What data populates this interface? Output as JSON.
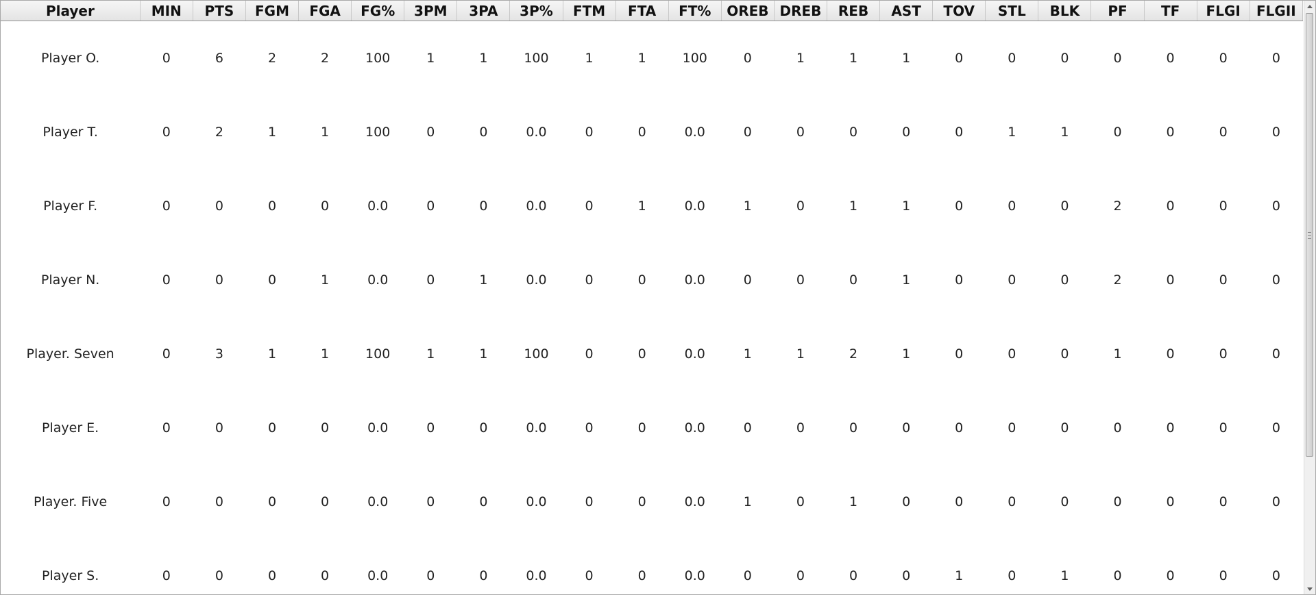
{
  "table": {
    "columns": [
      "Player",
      "MIN",
      "PTS",
      "FGM",
      "FGA",
      "FG%",
      "3PM",
      "3PA",
      "3P%",
      "FTM",
      "FTA",
      "FT%",
      "OREB",
      "DREB",
      "REB",
      "AST",
      "TOV",
      "STL",
      "BLK",
      "PF",
      "TF",
      "FLGI",
      "FLGII"
    ],
    "rows": [
      [
        "Player O.",
        "0",
        "6",
        "2",
        "2",
        "100",
        "1",
        "1",
        "100",
        "1",
        "1",
        "100",
        "0",
        "1",
        "1",
        "1",
        "0",
        "0",
        "0",
        "0",
        "0",
        "0",
        "0"
      ],
      [
        "Player T.",
        "0",
        "2",
        "1",
        "1",
        "100",
        "0",
        "0",
        "0.0",
        "0",
        "0",
        "0.0",
        "0",
        "0",
        "0",
        "0",
        "0",
        "1",
        "1",
        "0",
        "0",
        "0",
        "0"
      ],
      [
        "Player F.",
        "0",
        "0",
        "0",
        "0",
        "0.0",
        "0",
        "0",
        "0.0",
        "0",
        "1",
        "0.0",
        "1",
        "0",
        "1",
        "1",
        "0",
        "0",
        "0",
        "2",
        "0",
        "0",
        "0"
      ],
      [
        "Player N.",
        "0",
        "0",
        "0",
        "1",
        "0.0",
        "0",
        "1",
        "0.0",
        "0",
        "0",
        "0.0",
        "0",
        "0",
        "0",
        "1",
        "0",
        "0",
        "0",
        "2",
        "0",
        "0",
        "0"
      ],
      [
        "Player. Seven",
        "0",
        "3",
        "1",
        "1",
        "100",
        "1",
        "1",
        "100",
        "0",
        "0",
        "0.0",
        "1",
        "1",
        "2",
        "1",
        "0",
        "0",
        "0",
        "1",
        "0",
        "0",
        "0"
      ],
      [
        "Player E.",
        "0",
        "0",
        "0",
        "0",
        "0.0",
        "0",
        "0",
        "0.0",
        "0",
        "0",
        "0.0",
        "0",
        "0",
        "0",
        "0",
        "0",
        "0",
        "0",
        "0",
        "0",
        "0",
        "0"
      ],
      [
        "Player. Five",
        "0",
        "0",
        "0",
        "0",
        "0.0",
        "0",
        "0",
        "0.0",
        "0",
        "0",
        "0.0",
        "1",
        "0",
        "1",
        "0",
        "0",
        "0",
        "0",
        "0",
        "0",
        "0",
        "0"
      ],
      [
        "Player S.",
        "0",
        "0",
        "0",
        "0",
        "0.0",
        "0",
        "0",
        "0.0",
        "0",
        "0",
        "0.0",
        "0",
        "0",
        "0",
        "0",
        "1",
        "0",
        "1",
        "0",
        "0",
        "0",
        "0"
      ]
    ]
  },
  "scrollbar": {
    "position_fraction": 0.0,
    "visible_fraction": 0.78
  },
  "icons": {
    "scroll_up": "arrow-up-icon",
    "scroll_down": "arrow-down-icon",
    "thumb_grip": "grip-icon"
  }
}
